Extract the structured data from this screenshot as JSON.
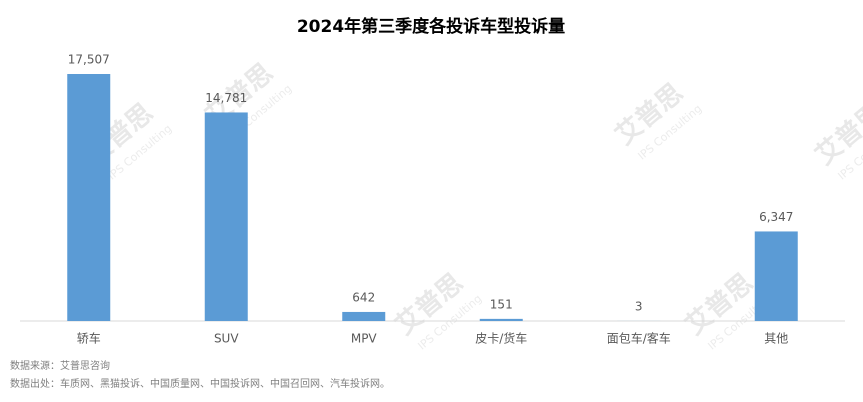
{
  "chart_data": {
    "type": "bar",
    "title": "2024年第三季度各投诉车型投诉量",
    "categories": [
      "轿车",
      "SUV",
      "MPV",
      "皮卡/货车",
      "面包车/客车",
      "其他"
    ],
    "values": [
      17507,
      14781,
      642,
      151,
      3,
      6347
    ],
    "value_labels": [
      "17,507",
      "14,781",
      "642",
      "151",
      "3",
      "6,347"
    ],
    "color": "#5b9bd5",
    "source": "数据来源：艾普思咨询",
    "origin": "数据出处：车质网、黑猫投诉、中国质量网、中国投诉网、中国召回网、汽车投诉网。",
    "watermark": {
      "brand": "艾普思",
      "english": "IPS Consulting"
    }
  }
}
